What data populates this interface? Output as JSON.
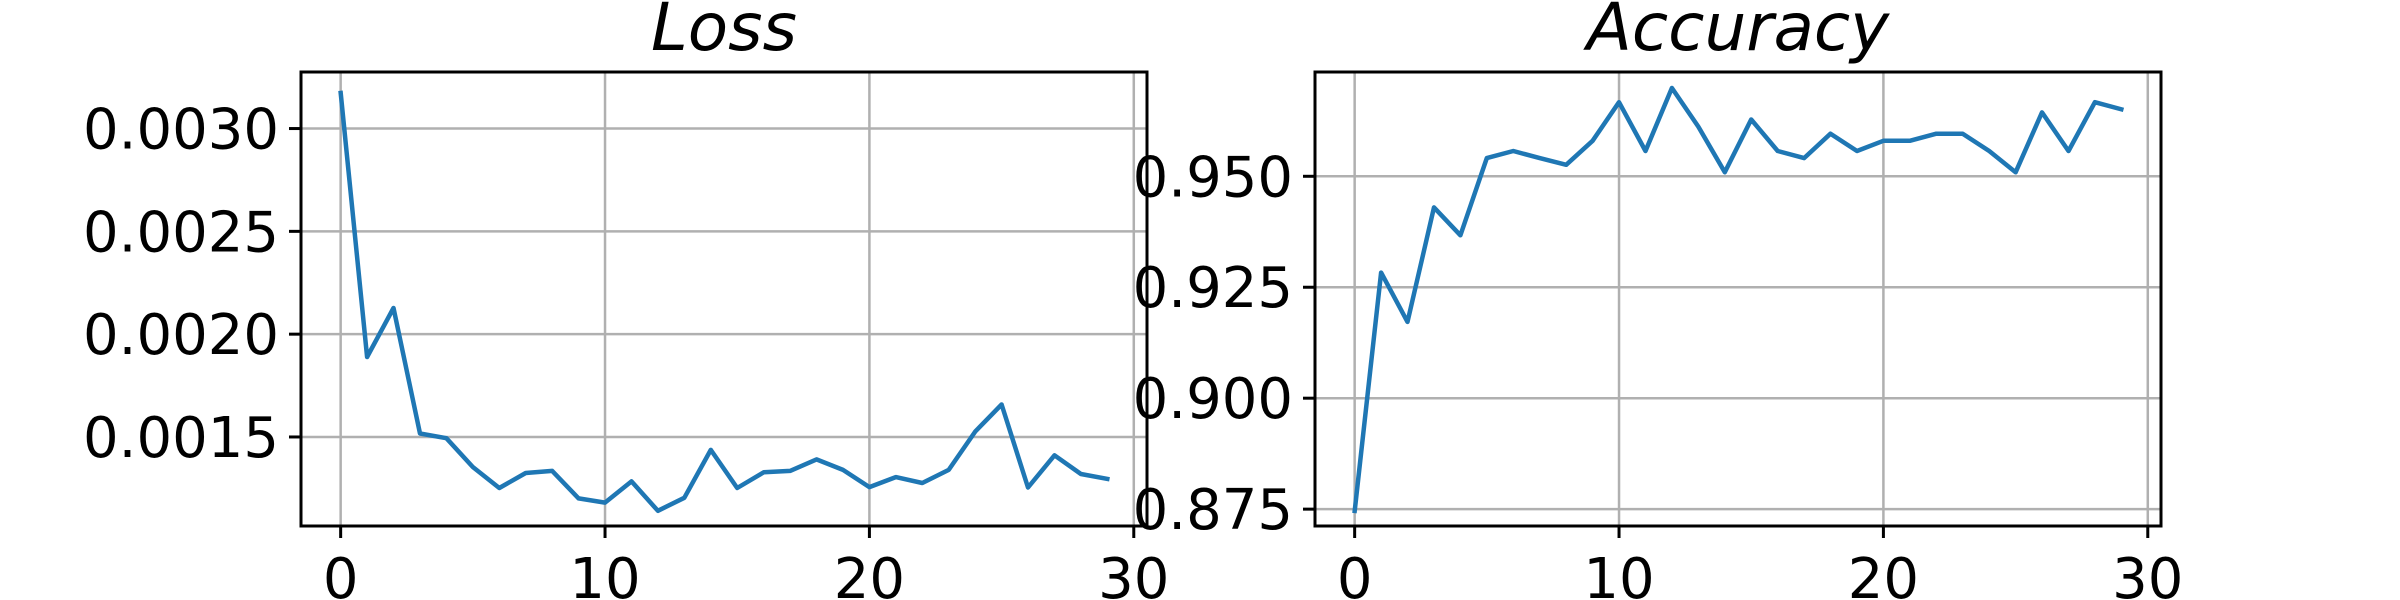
{
  "chart_data": [
    {
      "type": "line",
      "title": "Loss",
      "xlabel": "",
      "ylabel": "",
      "xlim": [
        -1.5,
        30.5
      ],
      "ylim": [
        0.001067,
        0.003275
      ],
      "grid": true,
      "line_color": "#1f77b4",
      "x_ticks": [
        0,
        10,
        20,
        30
      ],
      "x_tick_labels": [
        "0",
        "10",
        "20",
        "30"
      ],
      "y_ticks": [
        0.0015,
        0.002,
        0.0025,
        0.003
      ],
      "y_tick_labels": [
        "0.0015",
        "0.0020",
        "0.0025",
        "0.0030"
      ],
      "series": [
        {
          "x": [
            0,
            1,
            2,
            3,
            4,
            5,
            6,
            7,
            8,
            9,
            10,
            11,
            12,
            13,
            14,
            15,
            16,
            17,
            18,
            19,
            20,
            21,
            22,
            23,
            24,
            25,
            26,
            27,
            28,
            29
          ],
          "values": [
            0.003173,
            0.001889,
            0.002127,
            0.001517,
            0.001494,
            0.001354,
            0.001252,
            0.001325,
            0.001335,
            0.001201,
            0.001181,
            0.001284,
            0.001141,
            0.001204,
            0.001437,
            0.001252,
            0.001328,
            0.001335,
            0.001391,
            0.00134,
            0.001256,
            0.001305,
            0.001276,
            0.00134,
            0.001526,
            0.001658,
            0.001254,
            0.001411,
            0.00132,
            0.001296
          ]
        }
      ]
    },
    {
      "type": "line",
      "title": "Accuracy",
      "xlabel": "",
      "ylabel": "",
      "xlim": [
        -1.5,
        30.5
      ],
      "ylim": [
        0.8712,
        0.9735
      ],
      "grid": true,
      "line_color": "#1f77b4",
      "x_ticks": [
        0,
        10,
        20,
        30
      ],
      "x_tick_labels": [
        "0",
        "10",
        "20",
        "30"
      ],
      "y_ticks": [
        0.875,
        0.9,
        0.925,
        0.95
      ],
      "y_tick_labels": [
        "0.875",
        "0.900",
        "0.925",
        "0.950"
      ],
      "series": [
        {
          "x": [
            0,
            1,
            2,
            3,
            4,
            5,
            6,
            7,
            8,
            9,
            10,
            11,
            12,
            13,
            14,
            15,
            16,
            17,
            18,
            19,
            20,
            21,
            22,
            23,
            24,
            25,
            26,
            27,
            28,
            29
          ],
          "values": [
            0.8746,
            0.9283,
            0.9172,
            0.943,
            0.9367,
            0.9541,
            0.9557,
            0.9541,
            0.9526,
            0.958,
            0.9667,
            0.9557,
            0.9699,
            0.9612,
            0.9509,
            0.9628,
            0.9557,
            0.9541,
            0.9596,
            0.9557,
            0.958,
            0.958,
            0.9596,
            0.9596,
            0.9557,
            0.9509,
            0.9644,
            0.9557,
            0.9667,
            0.9651
          ]
        }
      ]
    }
  ]
}
